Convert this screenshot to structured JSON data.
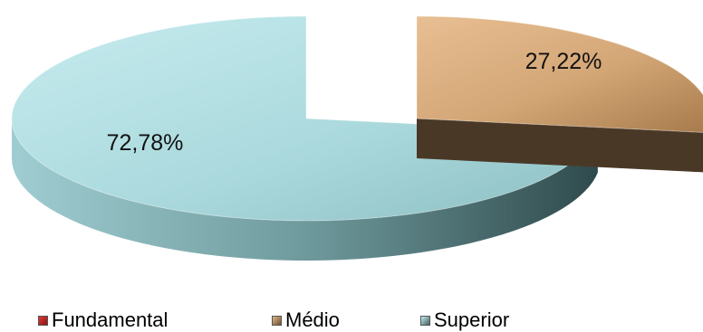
{
  "chart_data": {
    "type": "pie",
    "style": "3d-exploded",
    "categories": [
      "Fundamental",
      "Médio",
      "Superior"
    ],
    "values": [
      0,
      27.22,
      72.78
    ],
    "labels": [
      "",
      "27,22%",
      "72,78%"
    ],
    "colors": [
      "#c0201e",
      "#c49a6c",
      "#a9d8dc"
    ],
    "side_colors": [
      "#6a1010",
      "#4e3a26",
      "#3f5e61"
    ],
    "legend_position": "bottom",
    "legend": [
      "Fundamental",
      "Médio",
      "Superior"
    ]
  }
}
